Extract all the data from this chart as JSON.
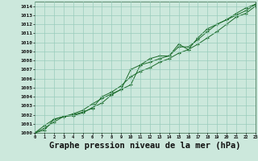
{
  "background_color": "#cce8dc",
  "grid_color": "#99ccbb",
  "line_color": "#1a6b2a",
  "xlabel": "Graphe pression niveau de la mer (hPa)",
  "xlim": [
    0,
    23
  ],
  "ylim": [
    1000,
    1014.5
  ],
  "yticks": [
    1000,
    1001,
    1002,
    1003,
    1004,
    1005,
    1006,
    1007,
    1008,
    1009,
    1010,
    1011,
    1012,
    1013,
    1014
  ],
  "xticks": [
    0,
    1,
    2,
    3,
    4,
    5,
    6,
    7,
    8,
    9,
    10,
    11,
    12,
    13,
    14,
    15,
    16,
    17,
    18,
    19,
    20,
    21,
    22,
    23
  ],
  "series1_x": [
    0,
    1,
    2,
    3,
    4,
    5,
    6,
    7,
    8,
    9,
    10,
    11,
    12,
    13,
    14,
    15,
    16,
    17,
    18,
    19,
    20,
    21,
    22,
    23
  ],
  "series1_y": [
    1000.0,
    1000.8,
    1001.5,
    1001.8,
    1001.9,
    1002.2,
    1002.8,
    1003.3,
    1004.2,
    1004.8,
    1005.3,
    1007.5,
    1007.8,
    1008.2,
    1008.5,
    1009.5,
    1009.5,
    1010.3,
    1011.2,
    1012.0,
    1012.5,
    1013.2,
    1013.8,
    1014.2
  ],
  "series2_x": [
    0,
    1,
    2,
    3,
    4,
    5,
    6,
    7,
    8,
    9,
    10,
    11,
    12,
    13,
    14,
    15,
    16,
    17,
    18,
    19,
    20,
    21,
    22,
    23
  ],
  "series2_y": [
    1000.0,
    1000.5,
    1001.2,
    1001.8,
    1002.0,
    1002.3,
    1002.7,
    1004.0,
    1004.5,
    1005.2,
    1006.2,
    1006.8,
    1007.2,
    1007.8,
    1008.2,
    1008.8,
    1009.2,
    1009.8,
    1010.5,
    1011.2,
    1012.0,
    1012.8,
    1013.2,
    1014.0
  ],
  "series3_x": [
    0,
    1,
    2,
    3,
    4,
    5,
    6,
    7,
    8,
    9,
    10,
    11,
    12,
    13,
    14,
    15,
    16,
    17,
    18,
    19,
    20,
    21,
    22,
    23
  ],
  "series3_y": [
    1000.0,
    1000.3,
    1001.5,
    1001.8,
    1002.1,
    1002.5,
    1003.2,
    1003.8,
    1004.3,
    1004.8,
    1007.0,
    1007.5,
    1008.2,
    1008.5,
    1008.5,
    1009.8,
    1009.2,
    1010.5,
    1011.5,
    1012.0,
    1012.5,
    1013.0,
    1013.5,
    1014.2
  ]
}
